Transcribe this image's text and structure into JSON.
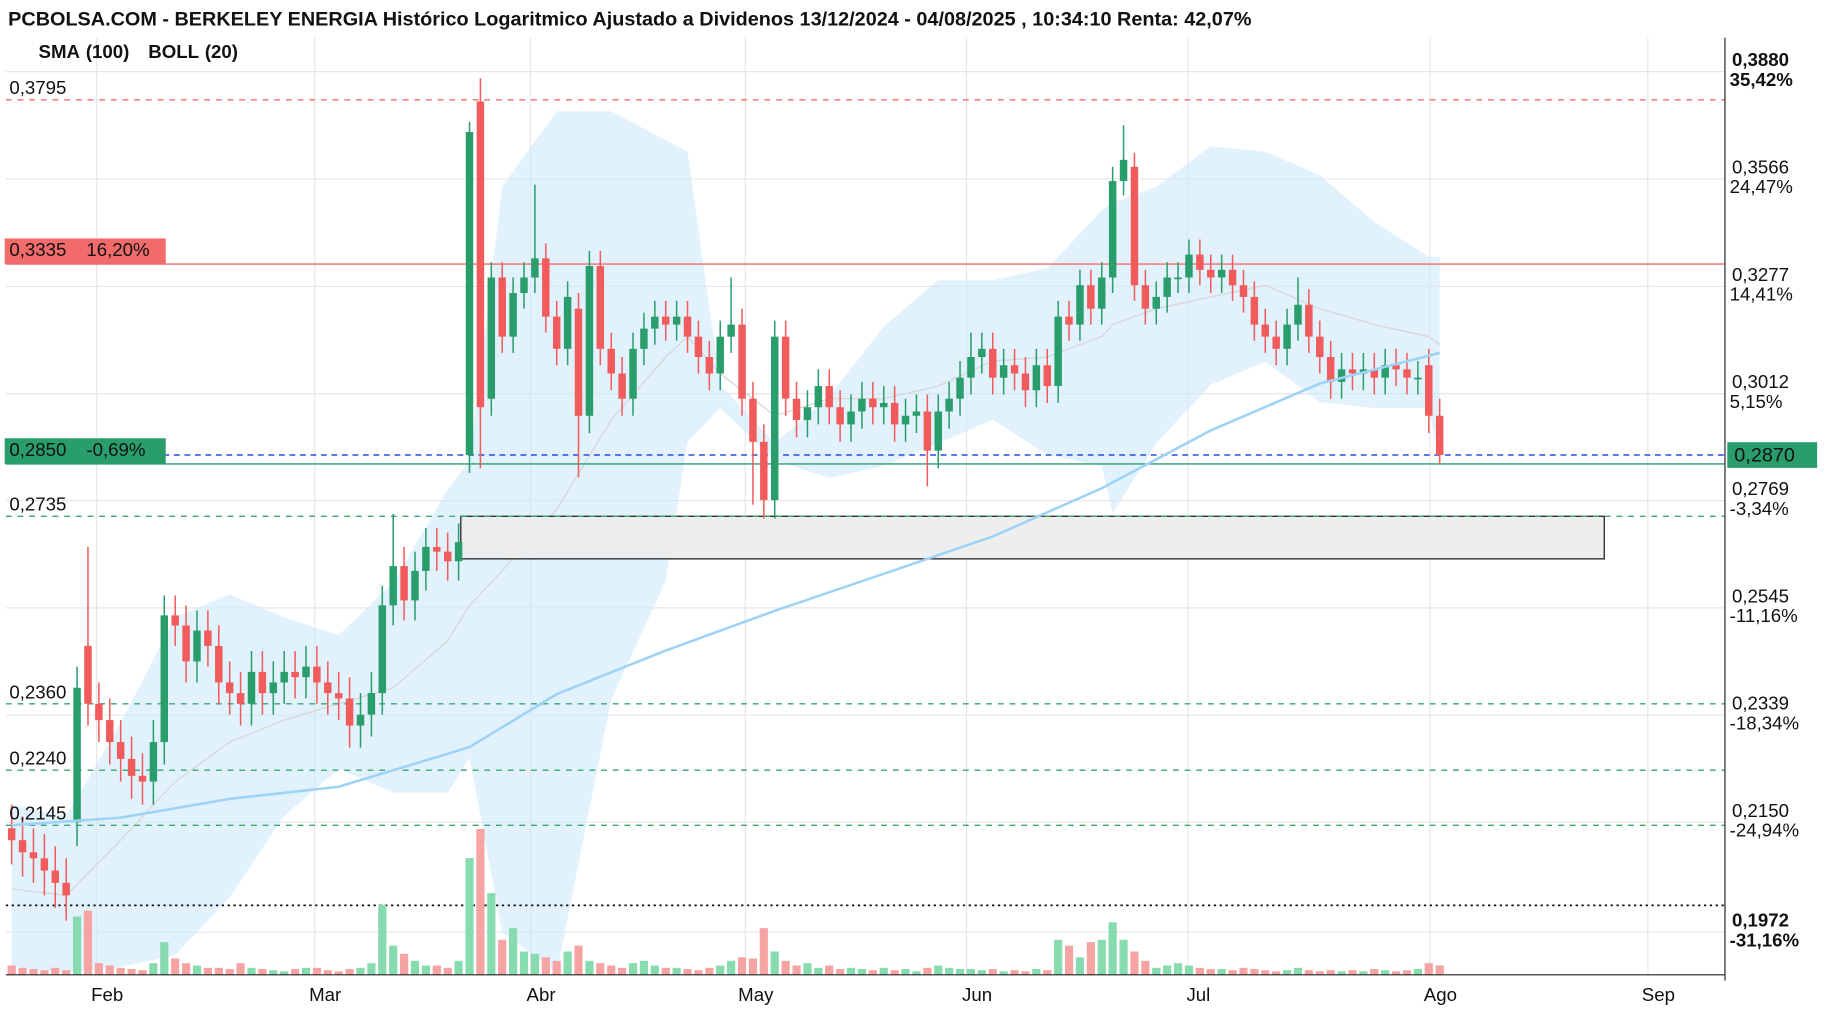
{
  "chart_data": {
    "type": "candlestick",
    "title": "PCBOLSA.COM - BERKELEY ENERGIA Histórico Logaritmico Ajustado a Dividenos 13/12/2024 - 04/08/2025 , 10:34:10 Renta: 42,07%",
    "x": [
      0,
      1,
      2,
      3,
      4,
      5,
      6,
      7,
      8,
      9,
      10,
      11,
      12,
      13,
      14,
      15,
      16,
      17,
      18,
      19,
      20,
      21,
      22,
      23,
      24,
      25,
      26,
      27,
      28,
      29,
      30,
      31,
      32,
      33,
      34,
      35,
      36,
      37,
      38,
      39,
      40,
      41,
      42,
      43,
      44,
      45,
      46,
      47,
      48,
      49,
      50,
      51,
      52,
      53,
      54,
      55,
      56,
      57,
      58,
      59,
      60,
      61,
      62,
      63,
      64,
      65,
      66,
      67,
      68,
      69,
      70,
      71,
      72,
      73,
      74,
      75,
      76,
      77,
      78,
      79,
      80,
      81,
      82,
      83,
      84,
      85,
      86,
      87,
      88,
      89,
      90,
      91,
      92,
      93,
      94,
      95,
      96,
      97,
      98,
      99,
      100,
      101,
      102,
      103,
      104,
      105,
      106,
      107,
      108,
      109,
      110,
      111,
      112,
      113,
      114,
      115,
      116,
      117,
      118,
      119,
      120,
      121,
      122,
      123,
      124,
      125,
      126,
      127,
      128,
      129,
      130,
      131
    ],
    "open": [
      0.214,
      0.212,
      0.21,
      0.209,
      0.207,
      0.205,
      0.215,
      0.247,
      0.236,
      0.233,
      0.229,
      0.226,
      0.223,
      0.222,
      0.229,
      0.253,
      0.251,
      0.244,
      0.25,
      0.247,
      0.24,
      0.238,
      0.236,
      0.242,
      0.238,
      0.24,
      0.242,
      0.241,
      0.243,
      0.24,
      0.238,
      0.237,
      0.232,
      0.234,
      0.238,
      0.255,
      0.263,
      0.256,
      0.262,
      0.267,
      0.266,
      0.264,
      0.287,
      0.379,
      0.3,
      0.33,
      0.315,
      0.326,
      0.33,
      0.335,
      0.32,
      0.312,
      0.322,
      0.296,
      0.333,
      0.312,
      0.306,
      0.3,
      0.312,
      0.317,
      0.32,
      0.318,
      0.32,
      0.315,
      0.31,
      0.306,
      0.315,
      0.318,
      0.3,
      0.29,
      0.277,
      0.315,
      0.3,
      0.295,
      0.298,
      0.303,
      0.298,
      0.294,
      0.297,
      0.3,
      0.298,
      0.299,
      0.294,
      0.296,
      0.297,
      0.288,
      0.297,
      0.3,
      0.305,
      0.31,
      0.312,
      0.305,
      0.308,
      0.306,
      0.302,
      0.308,
      0.303,
      0.32,
      0.318,
      0.328,
      0.322,
      0.33,
      0.356,
      0.36,
      0.328,
      0.322,
      0.325,
      0.33,
      0.33,
      0.336,
      0.332,
      0.33,
      0.332,
      0.328,
      0.325,
      0.318,
      0.315,
      0.312,
      0.318,
      0.323,
      0.315,
      0.31,
      0.304,
      0.307,
      0.306,
      0.307,
      0.305,
      0.308,
      0.307,
      0.305,
      0.308,
      0.296
    ],
    "high": [
      0.218,
      0.216,
      0.214,
      0.213,
      0.211,
      0.209,
      0.243,
      0.267,
      0.24,
      0.237,
      0.233,
      0.23,
      0.227,
      0.233,
      0.257,
      0.257,
      0.255,
      0.254,
      0.254,
      0.251,
      0.244,
      0.242,
      0.246,
      0.246,
      0.244,
      0.246,
      0.246,
      0.247,
      0.247,
      0.244,
      0.242,
      0.241,
      0.238,
      0.242,
      0.259,
      0.274,
      0.267,
      0.266,
      0.271,
      0.271,
      0.27,
      0.272,
      0.373,
      0.386,
      0.334,
      0.334,
      0.33,
      0.334,
      0.355,
      0.339,
      0.324,
      0.329,
      0.326,
      0.337,
      0.337,
      0.316,
      0.31,
      0.316,
      0.321,
      0.324,
      0.324,
      0.324,
      0.324,
      0.319,
      0.314,
      0.319,
      0.33,
      0.322,
      0.304,
      0.294,
      0.319,
      0.319,
      0.304,
      0.302,
      0.307,
      0.307,
      0.302,
      0.301,
      0.304,
      0.304,
      0.303,
      0.303,
      0.3,
      0.301,
      0.301,
      0.301,
      0.304,
      0.309,
      0.316,
      0.316,
      0.316,
      0.312,
      0.312,
      0.31,
      0.312,
      0.312,
      0.324,
      0.324,
      0.332,
      0.332,
      0.334,
      0.36,
      0.372,
      0.364,
      0.332,
      0.329,
      0.334,
      0.334,
      0.34,
      0.34,
      0.336,
      0.336,
      0.336,
      0.332,
      0.329,
      0.322,
      0.319,
      0.322,
      0.33,
      0.327,
      0.319,
      0.314,
      0.311,
      0.311,
      0.311,
      0.311,
      0.312,
      0.312,
      0.311,
      0.309,
      0.312,
      0.3
    ],
    "low": [
      0.208,
      0.206,
      0.205,
      0.203,
      0.201,
      0.199,
      0.211,
      0.232,
      0.229,
      0.225,
      0.222,
      0.219,
      0.218,
      0.218,
      0.225,
      0.247,
      0.24,
      0.24,
      0.243,
      0.236,
      0.234,
      0.232,
      0.232,
      0.234,
      0.234,
      0.236,
      0.237,
      0.237,
      0.236,
      0.234,
      0.233,
      0.228,
      0.228,
      0.23,
      0.234,
      0.251,
      0.252,
      0.252,
      0.258,
      0.262,
      0.26,
      0.26,
      0.283,
      0.284,
      0.296,
      0.311,
      0.311,
      0.322,
      0.326,
      0.316,
      0.308,
      0.308,
      0.282,
      0.292,
      0.308,
      0.302,
      0.296,
      0.296,
      0.308,
      0.313,
      0.314,
      0.314,
      0.311,
      0.306,
      0.302,
      0.302,
      0.311,
      0.296,
      0.276,
      0.273,
      0.273,
      0.296,
      0.291,
      0.291,
      0.294,
      0.294,
      0.29,
      0.29,
      0.293,
      0.294,
      0.294,
      0.29,
      0.29,
      0.292,
      0.28,
      0.284,
      0.293,
      0.296,
      0.301,
      0.306,
      0.301,
      0.301,
      0.302,
      0.298,
      0.298,
      0.299,
      0.299,
      0.314,
      0.314,
      0.318,
      0.318,
      0.326,
      0.352,
      0.324,
      0.318,
      0.318,
      0.321,
      0.326,
      0.326,
      0.328,
      0.326,
      0.326,
      0.324,
      0.321,
      0.314,
      0.311,
      0.308,
      0.308,
      0.314,
      0.311,
      0.306,
      0.3,
      0.3,
      0.302,
      0.302,
      0.301,
      0.301,
      0.303,
      0.301,
      0.301,
      0.292,
      0.285
    ],
    "close": [
      0.212,
      0.21,
      0.209,
      0.207,
      0.205,
      0.203,
      0.239,
      0.236,
      0.233,
      0.229,
      0.226,
      0.223,
      0.222,
      0.229,
      0.253,
      0.251,
      0.244,
      0.25,
      0.247,
      0.24,
      0.238,
      0.236,
      0.242,
      0.238,
      0.24,
      0.242,
      0.241,
      0.243,
      0.24,
      0.238,
      0.237,
      0.232,
      0.234,
      0.238,
      0.255,
      0.263,
      0.256,
      0.262,
      0.267,
      0.266,
      0.264,
      0.268,
      0.37,
      0.298,
      0.33,
      0.315,
      0.326,
      0.33,
      0.335,
      0.32,
      0.312,
      0.325,
      0.296,
      0.333,
      0.312,
      0.306,
      0.3,
      0.312,
      0.317,
      0.32,
      0.318,
      0.32,
      0.315,
      0.31,
      0.306,
      0.315,
      0.318,
      0.3,
      0.29,
      0.277,
      0.315,
      0.3,
      0.295,
      0.298,
      0.303,
      0.298,
      0.294,
      0.297,
      0.3,
      0.298,
      0.299,
      0.294,
      0.296,
      0.297,
      0.288,
      0.297,
      0.3,
      0.305,
      0.31,
      0.312,
      0.305,
      0.308,
      0.306,
      0.302,
      0.308,
      0.303,
      0.32,
      0.318,
      0.328,
      0.322,
      0.33,
      0.356,
      0.362,
      0.328,
      0.322,
      0.325,
      0.33,
      0.33,
      0.336,
      0.332,
      0.33,
      0.332,
      0.328,
      0.325,
      0.318,
      0.315,
      0.312,
      0.318,
      0.323,
      0.315,
      0.31,
      0.304,
      0.307,
      0.306,
      0.307,
      0.305,
      0.308,
      0.307,
      0.305,
      0.305,
      0.296,
      0.287
    ],
    "up_color": "#2a9d6c",
    "down_color": "#f15b5b",
    "volume": [
      8,
      6,
      5,
      4,
      6,
      4,
      50,
      55,
      10,
      8,
      6,
      5,
      4,
      10,
      28,
      14,
      10,
      8,
      6,
      6,
      5,
      10,
      6,
      5,
      4,
      3,
      5,
      6,
      6,
      4,
      3,
      5,
      6,
      10,
      60,
      25,
      18,
      12,
      8,
      8,
      6,
      12,
      100,
      125,
      70,
      30,
      40,
      20,
      18,
      15,
      12,
      20,
      25,
      12,
      10,
      8,
      6,
      10,
      12,
      8,
      6,
      6,
      5,
      4,
      6,
      8,
      12,
      15,
      14,
      40,
      20,
      12,
      8,
      10,
      6,
      8,
      5,
      6,
      5,
      4,
      6,
      4,
      5,
      3,
      6,
      8,
      6,
      5,
      5,
      4,
      5,
      3,
      4,
      3,
      5,
      4,
      30,
      25,
      15,
      28,
      30,
      45,
      30,
      20,
      12,
      6,
      8,
      10,
      8,
      6,
      5,
      5,
      4,
      6,
      5,
      4,
      3,
      4,
      6,
      4,
      3,
      4,
      3,
      4,
      3,
      5,
      4,
      3,
      4,
      5,
      10,
      8
    ],
    "volume_lim": [
      0,
      130
    ],
    "volume_up_color": "#86dcae",
    "volume_down_color": "#f6a3a3",
    "xlim": [
      -0.535,
      157.17
    ],
    "xticks": [
      {
        "value": 7.8,
        "label": "Feb"
      },
      {
        "value": 27.8,
        "label": "Mar"
      },
      {
        "value": 47.6,
        "label": "Abr"
      },
      {
        "value": 67.3,
        "label": "May"
      },
      {
        "value": 87.6,
        "label": "Jun"
      },
      {
        "value": 107.9,
        "label": "Jul"
      },
      {
        "value": 130.1,
        "label": "Ago"
      },
      {
        "value": 150.1,
        "label": "Sep"
      }
    ],
    "ylim": [
      0.1907,
      0.3985
    ],
    "log_scale": true,
    "grid": true,
    "yticks": [
      {
        "value": 0.388,
        "label": "0,3880"
      },
      {
        "value": 0.3566,
        "label": "0,3566"
      },
      {
        "value": 0.3277,
        "label": "0,3277"
      },
      {
        "value": 0.3012,
        "label": "0,3012"
      },
      {
        "value": 0.2769,
        "label": "0,2769"
      },
      {
        "value": 0.2545,
        "label": "0,2545"
      },
      {
        "value": 0.2339,
        "label": "0,2339"
      },
      {
        "value": 0.215,
        "label": "0,2150"
      },
      {
        "value": 0.1972,
        "label": "0,1972"
      }
    ],
    "ytick_pct": [
      "35,42%",
      "24,47%",
      "14,41%",
      "5,15%",
      "-3,34%",
      "-11,16%",
      "-18,34%",
      "-24,94%",
      "-31,16%"
    ],
    "sma": {
      "name": "SMA",
      "param": "(100)",
      "color": "#9fd3f5",
      "x": [
        0,
        10,
        20,
        30,
        42,
        50,
        60,
        70,
        80,
        90,
        100,
        110,
        120,
        131
      ],
      "values": [
        0.2145,
        0.2158,
        0.219,
        0.2211,
        0.2281,
        0.2378,
        0.2461,
        0.2539,
        0.2614,
        0.2692,
        0.2796,
        0.2926,
        0.3036,
        0.311
      ]
    },
    "boll": {
      "name": "BOLL",
      "param": "(20)",
      "color": "#cdeafb",
      "mid_color": "#d8d8d8",
      "x": [
        0,
        5,
        10,
        15,
        20,
        25,
        30,
        35,
        40,
        42,
        45,
        50,
        55,
        60,
        62,
        65,
        70,
        75,
        80,
        85,
        90,
        95,
        100,
        101,
        105,
        110,
        115,
        120,
        125,
        130,
        131
      ],
      "upper": [
        0.218,
        0.216,
        0.2325,
        0.2526,
        0.2572,
        0.2526,
        0.2491,
        0.2596,
        0.2793,
        0.2858,
        0.3544,
        0.3761,
        0.3761,
        0.3676,
        0.3643,
        0.3033,
        0.2897,
        0.3005,
        0.3175,
        0.3293,
        0.3293,
        0.3324,
        0.3479,
        0.35,
        0.3544,
        0.3659,
        0.3643,
        0.3576,
        0.3448,
        0.3354,
        0.3354
      ],
      "middle": [
        0.204,
        0.203,
        0.212,
        0.222,
        0.229,
        0.233,
        0.236,
        0.239,
        0.248,
        0.255,
        0.262,
        0.275,
        0.295,
        0.31,
        0.315,
        0.306,
        0.296,
        0.3,
        0.3,
        0.303,
        0.309,
        0.31,
        0.315,
        0.318,
        0.322,
        0.325,
        0.328,
        0.322,
        0.318,
        0.315,
        0.313
      ],
      "lower": [
        0.1919,
        0.191,
        0.1919,
        0.1937,
        0.2027,
        0.2161,
        0.2242,
        0.2201,
        0.2201,
        0.2262,
        0.1972,
        0.191,
        0.2368,
        0.26,
        0.29,
        0.2978,
        0.2858,
        0.2819,
        0.2845,
        0.2897,
        0.2951,
        0.2871,
        0.2845,
        0.2742,
        0.2897,
        0.3033,
        0.3089,
        0.2992,
        0.2978,
        0.2978,
        0.2858
      ]
    },
    "levels": [
      {
        "value": 0.3795,
        "label": "0,3795",
        "color": "#f26b6b",
        "style": "dashed"
      },
      {
        "value": 0.3335,
        "label": "0,3335",
        "pct": "16,20%",
        "color": "#f26b6b",
        "style": "solid",
        "boxed": true
      },
      {
        "value": 0.285,
        "label": "0,2850",
        "pct": "-0,69%",
        "color": "#2a9d6c",
        "style": "solid",
        "boxed": true
      },
      {
        "value": 0.2735,
        "label": "0,2735",
        "color": "#3aa76d",
        "style": "dashed"
      },
      {
        "value": 0.236,
        "label": "0,2360",
        "color": "#3aa76d",
        "style": "dashed"
      },
      {
        "value": 0.224,
        "label": "0,2240",
        "color": "#3aa76d",
        "style": "dashed"
      },
      {
        "value": 0.2145,
        "label": "0,2145",
        "color": "#3aa76d",
        "style": "dashed"
      }
    ],
    "last_price": {
      "value": 0.287,
      "label": "0,2870",
      "line_color": "#2b4bd8",
      "box_color": "#2a9d6c"
    },
    "zone": {
      "x": [
        41.2,
        146.1
      ],
      "y": [
        0.2645,
        0.2735
      ]
    },
    "dotted_line": 0.2014
  }
}
